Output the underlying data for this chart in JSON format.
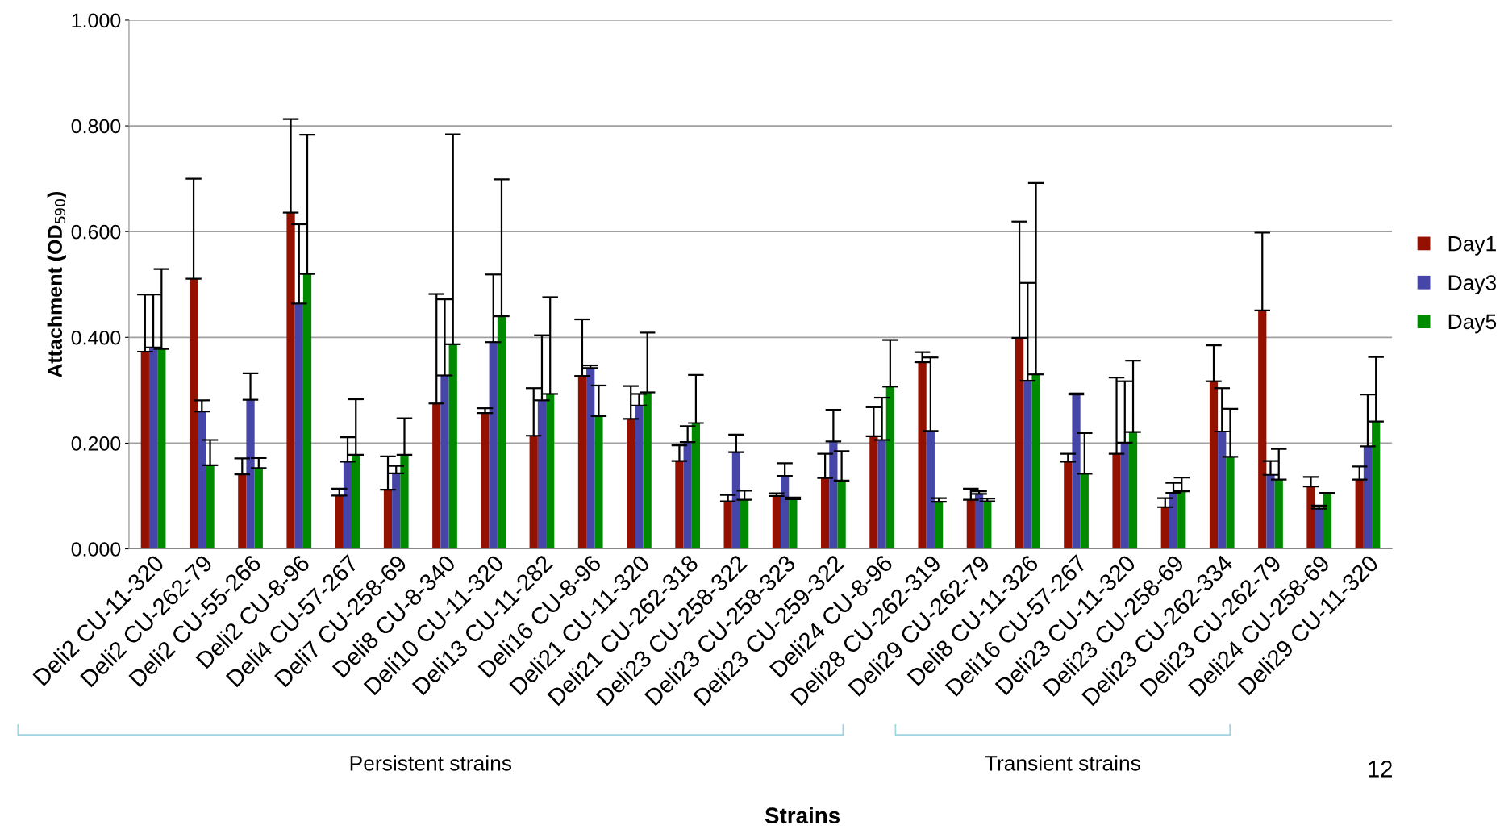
{
  "chart_data": {
    "type": "bar",
    "xlabel": "Strains",
    "ylabel": "Attachment (OD$_{590}$)",
    "categories": [
      "Deli2 CU-11-320",
      "Deli2 CU-262-79",
      "Deli2 CU-55-266",
      "Deli2 CU-8-96",
      "Deli4 CU-57-267",
      "Deli7 CU-258-69",
      "Deli8 CU-8-340",
      "Deli10 CU-11-320",
      "Deli13 CU-11-282",
      "Deli16 CU-8-96",
      "Deli21 CU-11-320",
      "Deli21 CU-262-318",
      "Deli23 CU-258-322",
      "Deli23 CU-258-323",
      "Deli23 CU-259-322",
      "Deli24 CU-8-96",
      "Deli28 CU-262-319",
      "Deli29 CU-262-79",
      "Deli8 CU-11-326",
      "Deli16 CU-57-267",
      "Deli23 CU-11-320",
      "Deli23 CU-258-69",
      "Deli23 CU-262-334",
      "Deli23 CU-262-79",
      "Deli24 CU-258-69",
      "Deli29 CU-11-320"
    ],
    "series": [
      {
        "name": "Day1",
        "color": "#941100",
        "values": [
          0.373,
          0.511,
          0.141,
          0.636,
          0.101,
          0.112,
          0.275,
          0.257,
          0.214,
          0.327,
          0.246,
          0.166,
          0.09,
          0.1,
          0.134,
          0.213,
          0.353,
          0.093,
          0.399,
          0.165,
          0.18,
          0.079,
          0.317,
          0.451,
          0.118,
          0.131
        ],
        "errors": [
          [
            0.373,
            0.481
          ],
          [
            0.511,
            0.7
          ],
          [
            0.141,
            0.171
          ],
          [
            0.636,
            0.813
          ],
          [
            0.101,
            0.114
          ],
          [
            0.112,
            0.175
          ],
          [
            0.275,
            0.482
          ],
          [
            0.257,
            0.266
          ],
          [
            0.214,
            0.304
          ],
          [
            0.327,
            0.434
          ],
          [
            0.246,
            0.308
          ],
          [
            0.166,
            0.196
          ],
          [
            0.09,
            0.102
          ],
          [
            0.1,
            0.105
          ],
          [
            0.134,
            0.18
          ],
          [
            0.213,
            0.268
          ],
          [
            0.353,
            0.372
          ],
          [
            0.093,
            0.114
          ],
          [
            0.399,
            0.619
          ],
          [
            0.165,
            0.18
          ],
          [
            0.18,
            0.324
          ],
          [
            0.079,
            0.096
          ],
          [
            0.317,
            0.385
          ],
          [
            0.451,
            0.598
          ],
          [
            0.118,
            0.136
          ],
          [
            0.131,
            0.156
          ]
        ]
      },
      {
        "name": "Day3",
        "color": "#4646a8",
        "values": [
          0.381,
          0.26,
          0.282,
          0.464,
          0.165,
          0.143,
          0.328,
          0.391,
          0.281,
          0.342,
          0.271,
          0.202,
          0.183,
          0.138,
          0.203,
          0.206,
          0.223,
          0.104,
          0.318,
          0.292,
          0.201,
          0.106,
          0.222,
          0.14,
          0.076,
          0.194
        ],
        "errors": [
          [
            0.381,
            0.481
          ],
          [
            0.26,
            0.281
          ],
          [
            0.282,
            0.332
          ],
          [
            0.464,
            0.614
          ],
          [
            0.165,
            0.211
          ],
          [
            0.143,
            0.157
          ],
          [
            0.328,
            0.472
          ],
          [
            0.391,
            0.519
          ],
          [
            0.281,
            0.404
          ],
          [
            0.342,
            0.347
          ],
          [
            0.271,
            0.293
          ],
          [
            0.202,
            0.232
          ],
          [
            0.183,
            0.216
          ],
          [
            0.138,
            0.162
          ],
          [
            0.203,
            0.263
          ],
          [
            0.206,
            0.286
          ],
          [
            0.223,
            0.362
          ],
          [
            0.104,
            0.109
          ],
          [
            0.318,
            0.503
          ],
          [
            0.292,
            0.294
          ],
          [
            0.201,
            0.317
          ],
          [
            0.106,
            0.125
          ],
          [
            0.222,
            0.304
          ],
          [
            0.14,
            0.166
          ],
          [
            0.076,
            0.082
          ],
          [
            0.194,
            0.292
          ]
        ]
      },
      {
        "name": "Day5",
        "color": "#008a00",
        "values": [
          0.378,
          0.158,
          0.153,
          0.52,
          0.178,
          0.178,
          0.387,
          0.44,
          0.293,
          0.251,
          0.296,
          0.238,
          0.093,
          0.094,
          0.129,
          0.307,
          0.089,
          0.09,
          0.33,
          0.142,
          0.221,
          0.109,
          0.174,
          0.131,
          0.105,
          0.241
        ],
        "errors": [
          [
            0.378,
            0.529
          ],
          [
            0.158,
            0.206
          ],
          [
            0.153,
            0.172
          ],
          [
            0.52,
            0.783
          ],
          [
            0.178,
            0.283
          ],
          [
            0.178,
            0.247
          ],
          [
            0.387,
            0.784
          ],
          [
            0.44,
            0.699
          ],
          [
            0.293,
            0.476
          ],
          [
            0.251,
            0.309
          ],
          [
            0.296,
            0.409
          ],
          [
            0.238,
            0.329
          ],
          [
            0.093,
            0.11
          ],
          [
            0.094,
            0.097
          ],
          [
            0.129,
            0.185
          ],
          [
            0.307,
            0.395
          ],
          [
            0.089,
            0.096
          ],
          [
            0.09,
            0.095
          ],
          [
            0.33,
            0.692
          ],
          [
            0.142,
            0.219
          ],
          [
            0.221,
            0.356
          ],
          [
            0.109,
            0.135
          ],
          [
            0.174,
            0.265
          ],
          [
            0.131,
            0.189
          ],
          [
            0.105,
            0.106
          ],
          [
            0.241,
            0.363
          ]
        ]
      }
    ],
    "ylim": [
      0,
      1.0
    ],
    "yticks": [
      {
        "value": 0,
        "label": "0.000"
      },
      {
        "value": 0.2,
        "label": "0.200"
      },
      {
        "value": 0.4,
        "label": "0.400"
      },
      {
        "value": 0.6,
        "label": "0.600"
      },
      {
        "value": 0.8,
        "label": "0.800"
      },
      {
        "value": 1.0,
        "label": "1.000"
      }
    ],
    "grid": "y",
    "legend": "right",
    "annotations": [
      "Persistent strains",
      "Transient strains",
      "12"
    ]
  }
}
